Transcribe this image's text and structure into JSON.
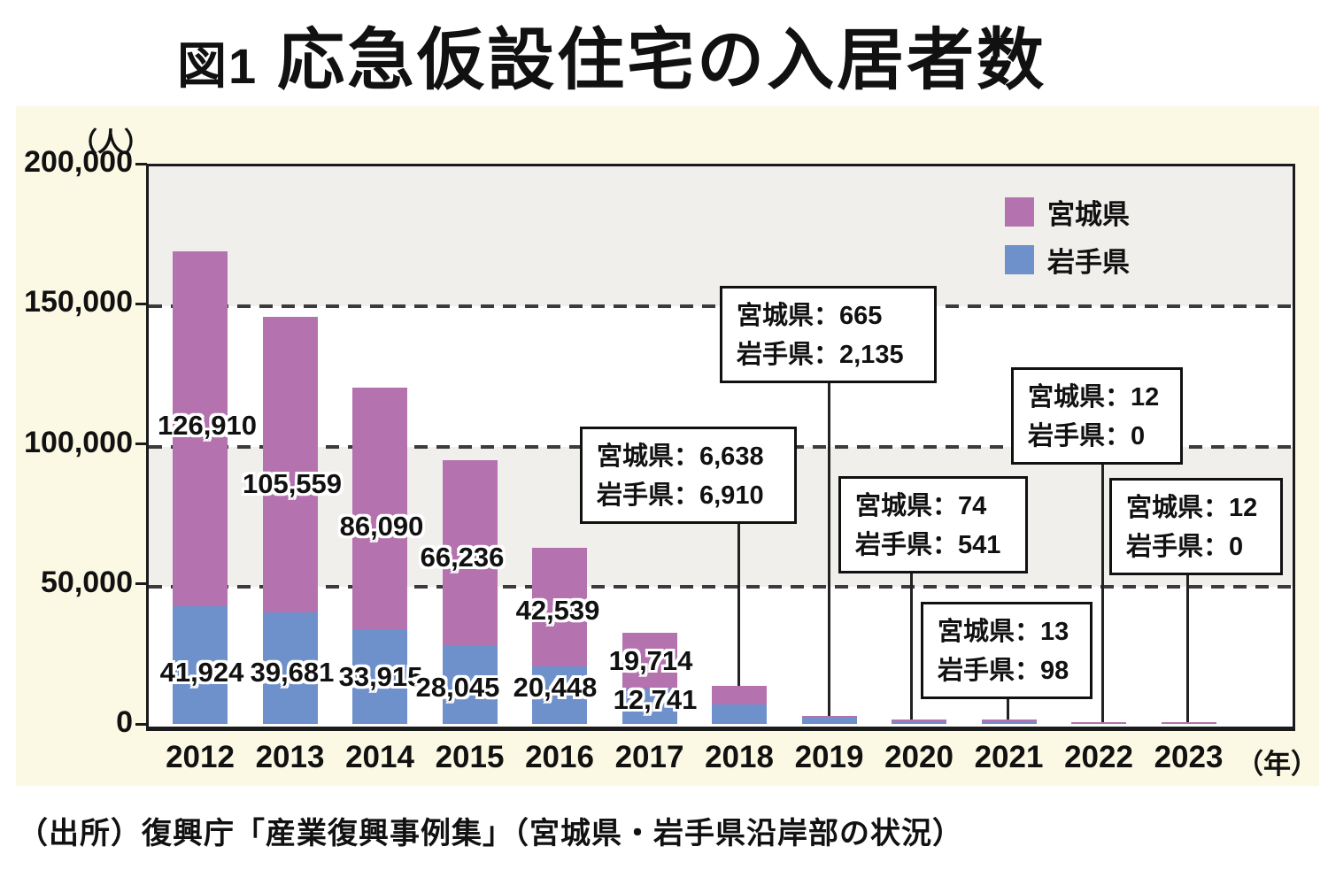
{
  "chart_data": {
    "type": "bar",
    "stacked": true,
    "figure_label": "図1",
    "title": "応急仮設住宅の入居者数",
    "y_unit_label": "（人）",
    "x_unit_label": "（年）",
    "categories": [
      "2012",
      "2013",
      "2014",
      "2015",
      "2016",
      "2017",
      "2018",
      "2019",
      "2020",
      "2021",
      "2022",
      "2023"
    ],
    "series": [
      {
        "name": "宮城県",
        "color": "#b473af",
        "values": [
          126910,
          105559,
          86090,
          66236,
          42539,
          19714,
          6638,
          665,
          74,
          13,
          12,
          12
        ]
      },
      {
        "name": "岩手県",
        "color": "#6e90cb",
        "values": [
          41924,
          39681,
          33915,
          28045,
          20448,
          12741,
          6910,
          2135,
          541,
          98,
          0,
          0
        ]
      }
    ],
    "bar_value_labels": [
      {
        "category": "2012",
        "miyagi": "126,910",
        "iwate": "41,924"
      },
      {
        "category": "2013",
        "miyagi": "105,559",
        "iwate": "39,681"
      },
      {
        "category": "2014",
        "miyagi": "86,090",
        "iwate": "33,915"
      },
      {
        "category": "2015",
        "miyagi": "66,236",
        "iwate": "28,045"
      },
      {
        "category": "2016",
        "miyagi": "42,539",
        "iwate": "20,448"
      },
      {
        "category": "2017",
        "miyagi": "19,714",
        "iwate": "12,741"
      }
    ],
    "callouts": [
      {
        "category": "2018",
        "lines": [
          "宮城県：6,638",
          "岩手県：6,910"
        ]
      },
      {
        "category": "2019",
        "lines": [
          "宮城県：665",
          "岩手県：2,135"
        ]
      },
      {
        "category": "2020",
        "lines": [
          "宮城県：74",
          "岩手県：541"
        ]
      },
      {
        "category": "2021",
        "lines": [
          "宮城県：13",
          "岩手県：98"
        ]
      },
      {
        "category": "2022",
        "lines": [
          "宮城県：12",
          "岩手県：0"
        ]
      },
      {
        "category": "2023",
        "lines": [
          "宮城県：12",
          "岩手県：0"
        ]
      }
    ],
    "y_axis": {
      "max": 200000,
      "ticks": [
        {
          "label": "0",
          "value": 0
        },
        {
          "label": "50,000",
          "value": 50000
        },
        {
          "label": "100,000",
          "value": 100000
        },
        {
          "label": "150,000",
          "value": 150000
        },
        {
          "label": "200,000",
          "value": 200000
        }
      ]
    },
    "legend": {
      "position": "top-right",
      "items": [
        {
          "label": "宮城県",
          "color": "#b473af"
        },
        {
          "label": "岩手県",
          "color": "#6e90cb"
        }
      ]
    },
    "grid": "dashed horizontal lines at 50,000 / 100,000 / 150,000",
    "background_bands": [
      "#f1efec",
      "#ffffff",
      "#f1efec",
      "#ffffff"
    ],
    "source": "（出所）復興庁「産業復興事例集」（宮城県・岩手県沿岸部の状況）"
  }
}
